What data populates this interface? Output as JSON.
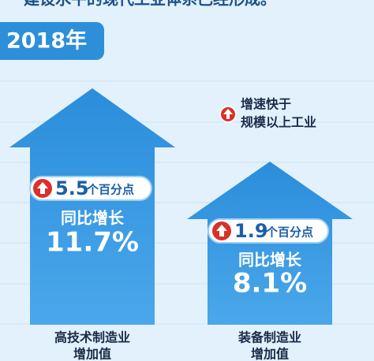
{
  "header": {
    "caption": "建设水平的现代工业体系已经形成。",
    "year": "2018年"
  },
  "note": {
    "line1": "增速快于",
    "line2": "规模以上工业"
  },
  "items": [
    {
      "badge_value": "5.5",
      "badge_unit": "个百分点",
      "growth_label": "同比增长",
      "growth": "11.7%",
      "name_line1": "高技术制造业",
      "name_line2": "增加值"
    },
    {
      "badge_value": "1.9",
      "badge_unit": "个百分点",
      "growth_label": "同比增长",
      "growth": "8.1%",
      "name_line1": "装备制造业",
      "name_line2": "增加值"
    }
  ]
}
